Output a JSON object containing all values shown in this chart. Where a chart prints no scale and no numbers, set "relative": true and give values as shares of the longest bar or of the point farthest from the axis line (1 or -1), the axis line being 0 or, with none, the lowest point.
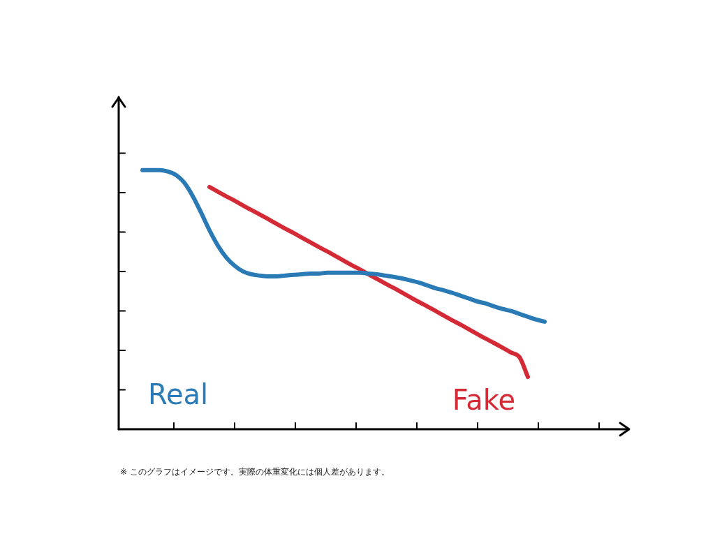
{
  "chart_data": {
    "type": "line",
    "relative": true,
    "legend": false,
    "marker": "none",
    "categories": [
      null,
      null,
      null,
      null,
      null,
      null,
      null,
      null,
      null,
      null,
      null,
      null,
      null,
      null,
      null,
      null,
      null,
      null,
      null,
      null,
      null,
      null,
      null,
      null,
      null,
      null,
      null,
      null,
      null,
      null,
      null,
      null,
      null,
      null,
      null,
      null,
      null,
      null,
      null,
      null,
      null,
      null,
      null,
      null,
      null,
      null,
      null,
      null,
      null
    ],
    "series": [
      {
        "name": "Real",
        "color": "#2a7ab5",
        "values": [
          1.0,
          1.0,
          1.0,
          0.995,
          0.981,
          0.951,
          0.9,
          0.836,
          0.768,
          0.709,
          0.663,
          0.631,
          0.609,
          0.598,
          0.593,
          0.59,
          0.59,
          0.593,
          0.596,
          0.598,
          0.601,
          0.601,
          0.604,
          0.604,
          0.604,
          0.604,
          0.604,
          0.601,
          0.598,
          0.593,
          0.588,
          0.582,
          0.574,
          0.566,
          0.555,
          0.544,
          0.536,
          0.526,
          0.515,
          0.504,
          0.493,
          0.485,
          0.474,
          0.464,
          0.456,
          0.445,
          0.434,
          0.423,
          0.415
        ]
      },
      {
        "name": "Fake",
        "color": "#d42a36",
        "values": [
          null,
          null,
          null,
          null,
          null,
          null,
          null,
          null,
          0.935,
          0.917,
          0.899,
          0.882,
          0.864,
          0.846,
          0.829,
          0.811,
          0.793,
          0.775,
          0.758,
          0.74,
          0.722,
          0.704,
          0.687,
          0.669,
          0.651,
          0.633,
          0.616,
          0.598,
          0.58,
          0.562,
          0.545,
          0.527,
          0.509,
          0.491,
          0.474,
          0.456,
          0.438,
          0.42,
          0.403,
          0.385,
          0.367,
          0.349,
          0.332,
          0.314,
          0.296,
          0.278,
          0.202,
          null,
          null
        ]
      }
    ],
    "annotations": [
      "※ このグラフはイメージです。実際の体重変化には個人差があります。"
    ]
  }
}
